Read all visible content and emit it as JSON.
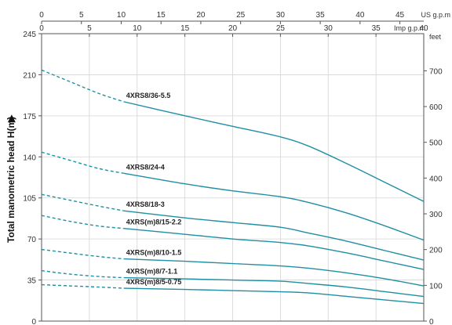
{
  "chart_data": {
    "type": "line",
    "title": "",
    "ylabel": "Total manometric head H(m)",
    "ylabel_arrow": "▶",
    "y_left": {
      "ticks": [
        0,
        35,
        70,
        105,
        140,
        175,
        210,
        245
      ],
      "range": [
        0,
        245
      ]
    },
    "y_right": {
      "unit": "feet",
      "ticks": [
        0,
        100,
        200,
        300,
        400,
        500,
        600,
        700
      ],
      "range_m": [
        0,
        245
      ]
    },
    "x_us": {
      "unit": "US g.p.m",
      "ticks": [
        0,
        5,
        10,
        15,
        20,
        25,
        30,
        35,
        40,
        45
      ]
    },
    "x_imp": {
      "unit": "Imp g.p.m",
      "ticks": [
        0,
        5,
        10,
        15,
        20,
        25,
        30,
        35,
        40
      ]
    },
    "x_range_imp": [
      0,
      40
    ],
    "grid": true,
    "line_color": "#1f8fa3",
    "series": [
      {
        "name": "4XRS8/36-5.5",
        "dashed_until_x": 8.6,
        "points": [
          [
            0,
            214
          ],
          [
            3,
            204
          ],
          [
            6,
            194
          ],
          [
            8.6,
            187
          ],
          [
            15,
            175
          ],
          [
            20,
            166
          ],
          [
            25,
            157
          ],
          [
            28,
            149
          ],
          [
            32,
            134
          ],
          [
            36,
            118
          ],
          [
            40,
            102
          ]
        ]
      },
      {
        "name": "4XRS8/24-4",
        "dashed_until_x": 8.6,
        "points": [
          [
            0,
            144
          ],
          [
            3,
            137
          ],
          [
            6,
            130
          ],
          [
            8.6,
            126
          ],
          [
            15,
            117
          ],
          [
            20,
            111
          ],
          [
            25,
            106
          ],
          [
            28,
            101
          ],
          [
            32,
            92
          ],
          [
            36,
            81
          ],
          [
            40,
            69
          ]
        ]
      },
      {
        "name": "4XRS8/18-3",
        "dashed_until_x": 8.6,
        "points": [
          [
            0,
            108
          ],
          [
            3,
            103
          ],
          [
            6,
            98
          ],
          [
            8.6,
            94
          ],
          [
            15,
            88
          ],
          [
            20,
            84
          ],
          [
            25,
            80
          ],
          [
            28,
            75
          ],
          [
            32,
            68
          ],
          [
            36,
            60
          ],
          [
            40,
            52
          ]
        ]
      },
      {
        "name": "4XRS(m)8/15-2.2",
        "dashed_until_x": 8.6,
        "points": [
          [
            0,
            90
          ],
          [
            3,
            85
          ],
          [
            6,
            81
          ],
          [
            8.6,
            79
          ],
          [
            15,
            74
          ],
          [
            20,
            70
          ],
          [
            25,
            67
          ],
          [
            28,
            64
          ],
          [
            32,
            58
          ],
          [
            36,
            51
          ],
          [
            40,
            44
          ]
        ]
      },
      {
        "name": "4XRS(m)8/10-1.5",
        "dashed_until_x": 8.6,
        "points": [
          [
            0,
            61
          ],
          [
            3,
            58
          ],
          [
            6,
            55
          ],
          [
            8.6,
            53
          ],
          [
            15,
            51
          ],
          [
            20,
            49
          ],
          [
            25,
            47
          ],
          [
            28,
            45
          ],
          [
            32,
            41
          ],
          [
            36,
            36
          ],
          [
            40,
            30
          ]
        ]
      },
      {
        "name": "4XRS(m)8/7-1.1",
        "dashed_until_x": 8.6,
        "points": [
          [
            0,
            43
          ],
          [
            3,
            40
          ],
          [
            6,
            38
          ],
          [
            8.6,
            37
          ],
          [
            15,
            36
          ],
          [
            20,
            35
          ],
          [
            25,
            34
          ],
          [
            28,
            32
          ],
          [
            32,
            29
          ],
          [
            36,
            25
          ],
          [
            40,
            21
          ]
        ]
      },
      {
        "name": "4XRS(m)8/5-0.75",
        "dashed_until_x": 8.6,
        "points": [
          [
            0,
            31
          ],
          [
            3,
            30
          ],
          [
            6,
            29
          ],
          [
            8.6,
            28
          ],
          [
            15,
            27
          ],
          [
            20,
            26
          ],
          [
            25,
            25
          ],
          [
            28,
            24
          ],
          [
            32,
            21
          ],
          [
            36,
            18
          ],
          [
            40,
            15
          ]
        ]
      }
    ]
  }
}
